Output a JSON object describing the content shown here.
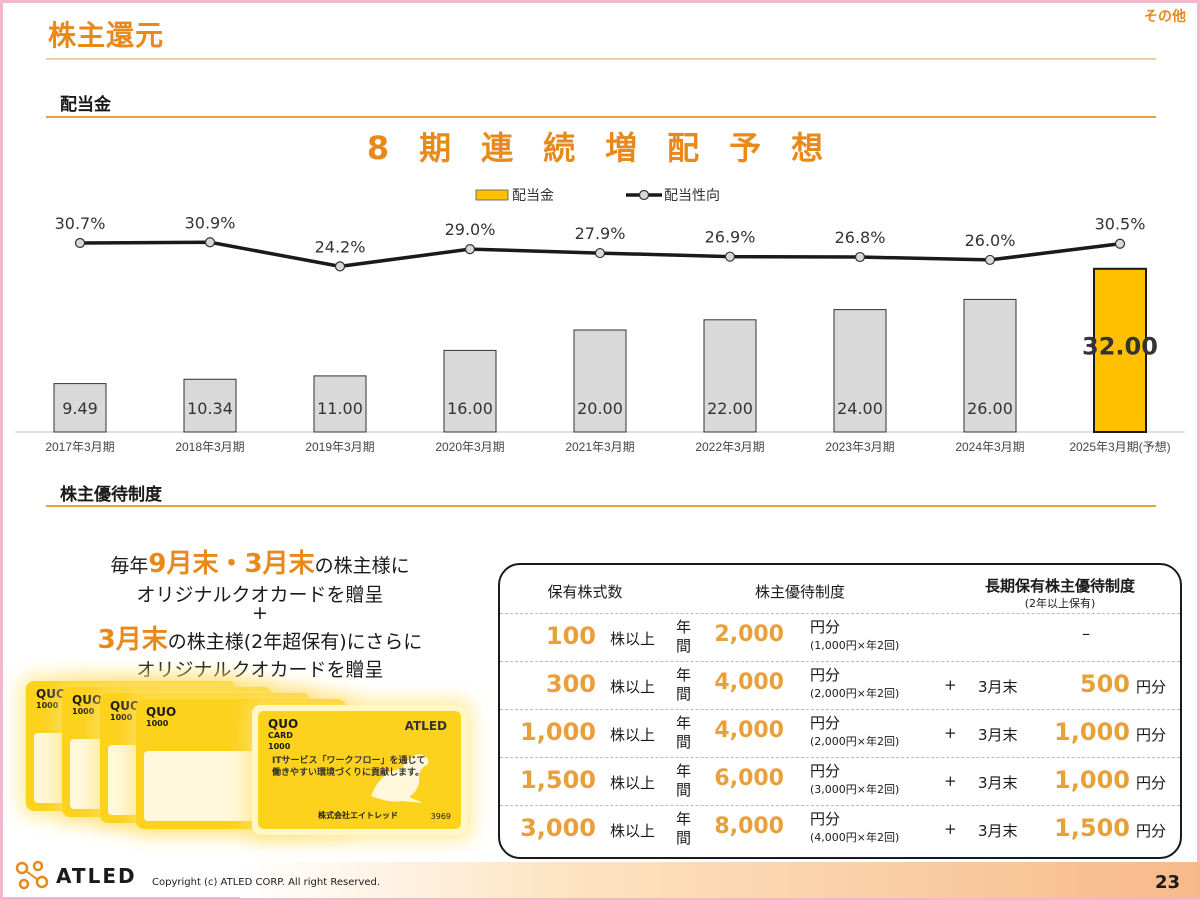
{
  "header": {
    "title": "株主還元",
    "category": "その他"
  },
  "dividend": {
    "section_label": "配当金",
    "headline": "8期連続増配予想"
  },
  "chart_data": {
    "type": "bar",
    "categories": [
      "2017年3月期",
      "2018年3月期",
      "2019年3月期",
      "2020年3月期",
      "2021年3月期",
      "2022年3月期",
      "2023年3月期",
      "2024年3月期",
      "2025年3月期(予想)"
    ],
    "series": [
      {
        "name": "配当金",
        "kind": "bar",
        "values": [
          9.49,
          10.34,
          11.0,
          16.0,
          20.0,
          22.0,
          24.0,
          26.0,
          32.0
        ],
        "labels": [
          "9.49",
          "10.34",
          "11.00",
          "16.00",
          "20.00",
          "22.00",
          "24.00",
          "26.00",
          "32.00"
        ],
        "color": "#d9d9d9",
        "highlight_color": "#ffc000"
      },
      {
        "name": "配当性向",
        "kind": "line",
        "values": [
          30.7,
          30.9,
          24.2,
          29.0,
          27.9,
          26.9,
          26.8,
          26.0,
          30.5
        ],
        "labels": [
          "30.7%",
          "30.9%",
          "24.2%",
          "29.0%",
          "27.9%",
          "26.9%",
          "26.8%",
          "26.0%",
          "30.5%"
        ],
        "color": "#1a1a1a"
      }
    ],
    "legend_position": "top-center",
    "grid": false
  },
  "benefits": {
    "section_label": "株主優待制度",
    "promo": {
      "line1_prefix": "毎年",
      "line1_highlight": "9月末・3月末",
      "line1_suffix": "の株主様に",
      "line2": "オリジナルクオカードを贈呈",
      "plus": "+",
      "line4_highlight": "3月末",
      "line4_suffix": "の株主様(2年超保有)にさらに",
      "line5": "オリジナルクオカードを贈呈"
    },
    "card": {
      "brand": "QUO",
      "brand_sub": "CARD",
      "value": "1000",
      "logo": "ATLED",
      "tagline1": "ITサービス「ワークフロー」を通じて",
      "tagline2": "働きやすい環境づくりに貢献します。",
      "company": "株式会社エイトレッド",
      "code": "3969"
    },
    "table": {
      "headers": {
        "shares": "保有株式数",
        "benefit": "株主優待制度",
        "long_term": "長期保有株主優待制度",
        "long_term_sub": "(2年以上保有)"
      },
      "unit_shares": "株以上",
      "nen": "年",
      "kan": "間",
      "yen": "円分",
      "plus": "+",
      "month": "3月末",
      "rows": [
        {
          "shares": "100",
          "amount": "2,000",
          "note": "(1,000円×年2回)",
          "long_term": "–",
          "has_long_term": false
        },
        {
          "shares": "300",
          "amount": "4,000",
          "note": "(2,000円×年2回)",
          "long_term": "500",
          "has_long_term": true
        },
        {
          "shares": "1,000",
          "amount": "4,000",
          "note": "(2,000円×年2回)",
          "long_term": "1,000",
          "has_long_term": true
        },
        {
          "shares": "1,500",
          "amount": "6,000",
          "note": "(3,000円×年2回)",
          "long_term": "1,000",
          "has_long_term": true
        },
        {
          "shares": "3,000",
          "amount": "8,000",
          "note": "(4,000円×年2回)",
          "long_term": "1,500",
          "has_long_term": true
        }
      ]
    }
  },
  "footer": {
    "logo": "ATLED",
    "copyright": "Copyright (c) ATLED CORP. All right Reserved.",
    "page": "23"
  }
}
